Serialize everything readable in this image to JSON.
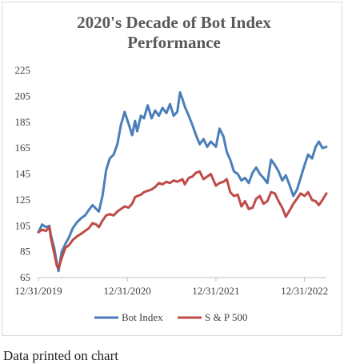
{
  "chart_data": {
    "type": "line",
    "title_lines": [
      "2020's Decade of Bot Index",
      "Performance"
    ],
    "xlabel": "",
    "ylabel": "",
    "ylim": [
      65,
      225
    ],
    "yticks": [
      65,
      85,
      105,
      125,
      145,
      165,
      185,
      205,
      225
    ],
    "xlim": [
      "2019-12-31",
      "2023-03-31"
    ],
    "xticks": [
      "12/31/2019",
      "12/31/2020",
      "12/31/2021",
      "12/31/2022"
    ],
    "grid": false,
    "legend": "bottom",
    "series": [
      {
        "name": "Bot Index",
        "color": "#4a7ebb",
        "x": [
          "2019-12-31",
          "2020-01-15",
          "2020-01-31",
          "2020-02-14",
          "2020-02-20",
          "2020-03-05",
          "2020-03-16",
          "2020-03-23",
          "2020-04-05",
          "2020-04-20",
          "2020-05-05",
          "2020-05-20",
          "2020-06-08",
          "2020-06-25",
          "2020-07-10",
          "2020-07-25",
          "2020-08-10",
          "2020-08-25",
          "2020-09-05",
          "2020-09-20",
          "2020-10-05",
          "2020-10-20",
          "2020-11-05",
          "2020-11-20",
          "2020-12-05",
          "2020-12-20",
          "2021-01-05",
          "2021-01-20",
          "2021-02-01",
          "2021-02-10",
          "2021-02-25",
          "2021-03-10",
          "2021-03-25",
          "2021-04-10",
          "2021-04-25",
          "2021-05-10",
          "2021-05-25",
          "2021-06-10",
          "2021-06-25",
          "2021-07-10",
          "2021-07-25",
          "2021-08-05",
          "2021-08-15",
          "2021-08-25",
          "2021-09-10",
          "2021-09-25",
          "2021-10-10",
          "2021-10-25",
          "2021-11-10",
          "2021-11-25",
          "2021-12-10",
          "2021-12-31",
          "2022-01-15",
          "2022-01-31",
          "2022-02-14",
          "2022-02-28",
          "2022-03-15",
          "2022-03-31",
          "2022-04-15",
          "2022-04-30",
          "2022-05-15",
          "2022-05-31",
          "2022-06-15",
          "2022-06-30",
          "2022-07-15",
          "2022-07-31",
          "2022-08-15",
          "2022-08-31",
          "2022-09-15",
          "2022-09-30",
          "2022-10-15",
          "2022-10-31",
          "2022-11-15",
          "2022-11-30",
          "2022-12-15",
          "2022-12-31",
          "2023-01-15",
          "2023-01-31",
          "2023-02-15",
          "2023-02-28",
          "2023-03-15",
          "2023-03-31"
        ],
        "values": [
          100,
          106,
          104,
          105,
          98,
          88,
          76,
          70,
          85,
          91,
          96,
          103,
          108,
          111,
          113,
          117,
          121,
          118,
          116,
          128,
          148,
          157,
          160,
          168,
          183,
          193,
          184,
          175,
          186,
          178,
          190,
          188,
          198,
          188,
          194,
          190,
          196,
          192,
          199,
          190,
          193,
          208,
          203,
          197,
          190,
          183,
          175,
          168,
          172,
          166,
          170,
          166,
          180,
          174,
          162,
          156,
          147,
          145,
          140,
          142,
          138,
          146,
          150,
          145,
          142,
          138,
          156,
          152,
          147,
          140,
          144,
          136,
          128,
          133,
          142,
          152,
          160,
          157,
          166,
          170,
          165,
          166
        ]
      },
      {
        "name": "S & P 500",
        "color": "#be4b48",
        "x": [
          "2019-12-31",
          "2020-01-15",
          "2020-01-31",
          "2020-02-14",
          "2020-02-20",
          "2020-03-05",
          "2020-03-16",
          "2020-03-23",
          "2020-04-05",
          "2020-04-20",
          "2020-05-05",
          "2020-05-20",
          "2020-06-08",
          "2020-06-25",
          "2020-07-10",
          "2020-07-25",
          "2020-08-10",
          "2020-08-25",
          "2020-09-05",
          "2020-09-20",
          "2020-10-05",
          "2020-10-20",
          "2020-11-05",
          "2020-11-20",
          "2020-12-05",
          "2020-12-20",
          "2021-01-05",
          "2021-01-20",
          "2021-02-01",
          "2021-02-10",
          "2021-02-25",
          "2021-03-10",
          "2021-03-25",
          "2021-04-10",
          "2021-04-25",
          "2021-05-10",
          "2021-05-25",
          "2021-06-10",
          "2021-06-25",
          "2021-07-10",
          "2021-07-25",
          "2021-08-05",
          "2021-08-15",
          "2021-08-25",
          "2021-09-10",
          "2021-09-25",
          "2021-10-10",
          "2021-10-25",
          "2021-11-10",
          "2021-11-25",
          "2021-12-10",
          "2021-12-31",
          "2022-01-15",
          "2022-01-31",
          "2022-02-14",
          "2022-02-28",
          "2022-03-15",
          "2022-03-31",
          "2022-04-15",
          "2022-04-30",
          "2022-05-15",
          "2022-05-31",
          "2022-06-15",
          "2022-06-30",
          "2022-07-15",
          "2022-07-31",
          "2022-08-15",
          "2022-08-31",
          "2022-09-15",
          "2022-09-30",
          "2022-10-15",
          "2022-10-31",
          "2022-11-15",
          "2022-11-30",
          "2022-12-15",
          "2022-12-31",
          "2023-01-15",
          "2023-01-31",
          "2023-02-15",
          "2023-02-28",
          "2023-03-15",
          "2023-03-31"
        ],
        "values": [
          100,
          102,
          101,
          104,
          96,
          84,
          74,
          72,
          80,
          88,
          90,
          94,
          97,
          99,
          101,
          103,
          107,
          106,
          104,
          109,
          113,
          114,
          113,
          116,
          118,
          120,
          119,
          122,
          127,
          128,
          129,
          131,
          132,
          133,
          135,
          138,
          137,
          139,
          138,
          140,
          139,
          140,
          141,
          137,
          142,
          143,
          146,
          147,
          141,
          143,
          145,
          136,
          138,
          139,
          141,
          131,
          128,
          129,
          120,
          124,
          118,
          119,
          126,
          128,
          122,
          124,
          131,
          130,
          124,
          119,
          112,
          117,
          122,
          126,
          130,
          128,
          131,
          125,
          124,
          121,
          125,
          130
        ]
      }
    ]
  },
  "caption": "Data printed on chart"
}
